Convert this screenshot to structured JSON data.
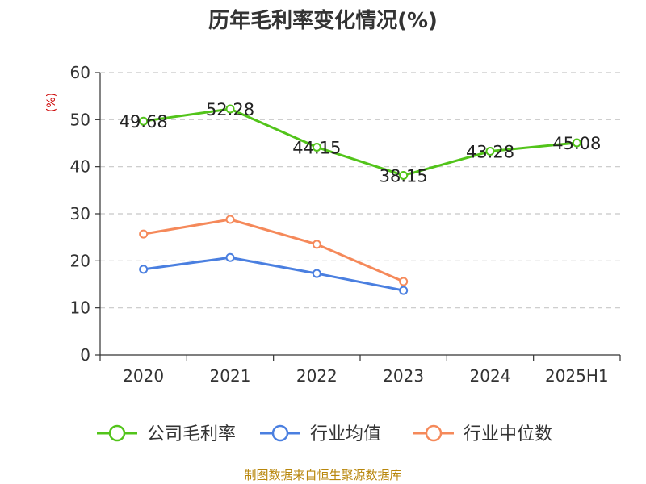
{
  "chart_data": {
    "type": "line",
    "title": "历年毛利率变化情况(%)",
    "ylabel": "(%)",
    "xlabel": "",
    "categories": [
      "2020",
      "2021",
      "2022",
      "2023",
      "2024",
      "2025H1"
    ],
    "ylim": [
      0,
      60
    ],
    "yticks": [
      "0",
      "10",
      "20",
      "30",
      "40",
      "50",
      "60"
    ],
    "grid": true,
    "legend_position": "bottom",
    "series": [
      {
        "name": "公司毛利率",
        "color": "#52c41a",
        "values": [
          49.68,
          52.28,
          44.15,
          38.15,
          43.28,
          45.08
        ],
        "labels": [
          "49.68",
          "52.28",
          "44.15",
          "38.15",
          "43.28",
          "45.08"
        ]
      },
      {
        "name": "行业均值",
        "color": "#4a7fe0",
        "values": [
          18.2,
          20.7,
          17.3,
          13.7,
          null,
          null
        ]
      },
      {
        "name": "行业中位数",
        "color": "#f5895a",
        "values": [
          25.7,
          28.8,
          23.5,
          15.6,
          null,
          null
        ]
      }
    ]
  },
  "footer": {
    "source": "制图数据来自恒生聚源数据库"
  }
}
